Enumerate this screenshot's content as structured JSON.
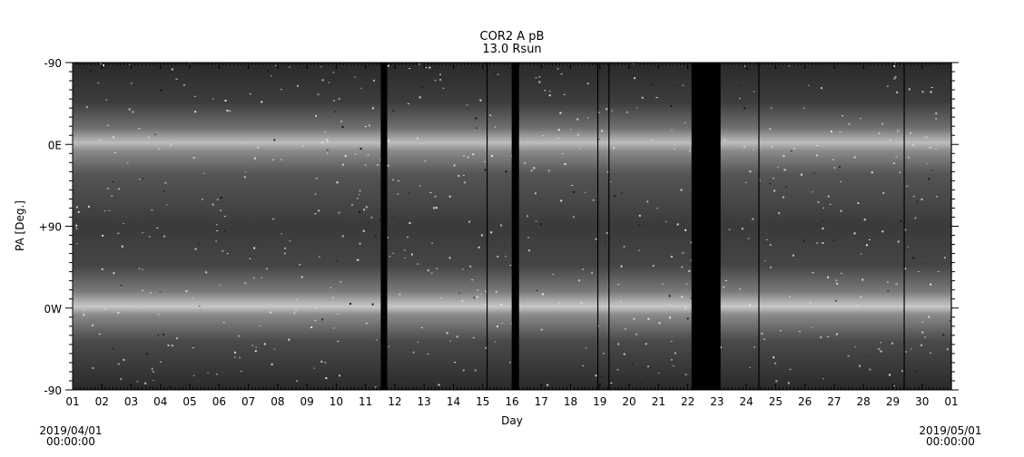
{
  "chart_data": {
    "type": "heatmap",
    "title": "COR2 A pB",
    "subtitle": "13.0 Rsun",
    "xlabel": "Day",
    "ylabel": "PA [Deg.]",
    "x_tick_labels": [
      "01",
      "02",
      "03",
      "04",
      "05",
      "06",
      "07",
      "08",
      "09",
      "10",
      "11",
      "12",
      "13",
      "14",
      "15",
      "16",
      "17",
      "18",
      "19",
      "20",
      "21",
      "22",
      "23",
      "24",
      "25",
      "26",
      "27",
      "28",
      "29",
      "30",
      "01"
    ],
    "xlim_days": [
      1,
      31
    ],
    "y_tick_labels": [
      "-90",
      "0E",
      "+90",
      "0W",
      "-90"
    ],
    "ylim_deg": [
      -90,
      270
    ],
    "start_label": {
      "date": "2019/04/01",
      "time": "00:00:00"
    },
    "end_label": {
      "date": "2019/05/01",
      "time": "00:00:00"
    },
    "bright_bands_deg": [
      0,
      180
    ],
    "data_gaps_days": [
      [
        11.52,
        11.74
      ],
      [
        15.99,
        16.24
      ],
      [
        22.13,
        23.12
      ]
    ],
    "thin_gap_lines_days": [
      15.15,
      18.93,
      19.31,
      24.43,
      29.39,
      31.0
    ],
    "colormap": "grayscale"
  }
}
